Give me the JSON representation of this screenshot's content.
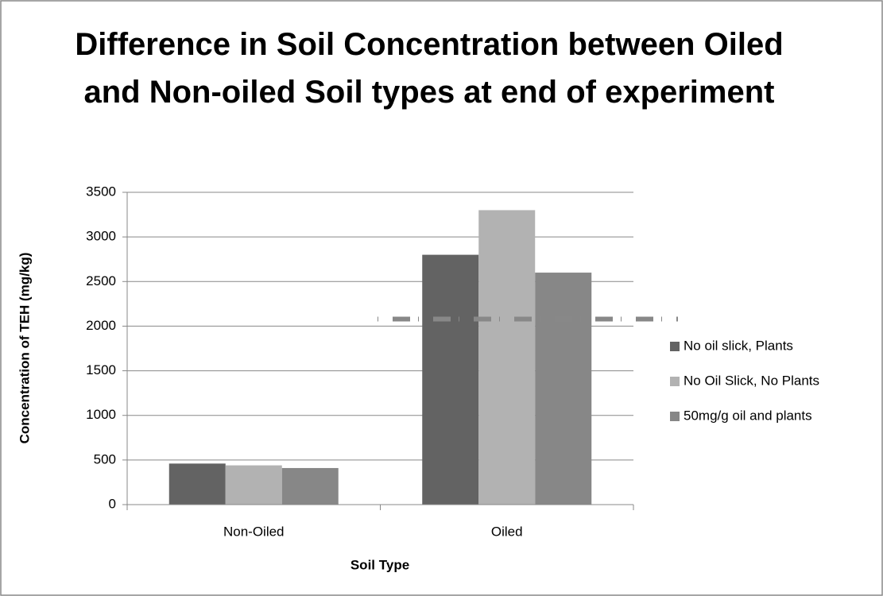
{
  "chart_data": {
    "type": "bar",
    "title": "Difference in Soil Concentration between Oiled and Non-oiled Soil types at end of experiment",
    "x_label": "Soil Type",
    "y_label": "Concentration of TEH (mg/kg)",
    "categories": [
      "Non-Oiled",
      "Oiled"
    ],
    "series": [
      {
        "name": "No oil slick, Plants",
        "color": "#636363",
        "values": [
          460,
          2800
        ]
      },
      {
        "name": "No Oil Slick, No Plants",
        "color": "#b2b2b2",
        "values": [
          440,
          3300
        ]
      },
      {
        "name": "50mg/g oil and plants",
        "color": "#878787",
        "values": [
          410,
          2600
        ]
      }
    ],
    "reference_line": 2080,
    "ylim": [
      0,
      3500
    ],
    "yticks": [
      0,
      500,
      1000,
      1500,
      2000,
      2500,
      3000,
      3500
    ],
    "grid": true,
    "legend": "right"
  }
}
